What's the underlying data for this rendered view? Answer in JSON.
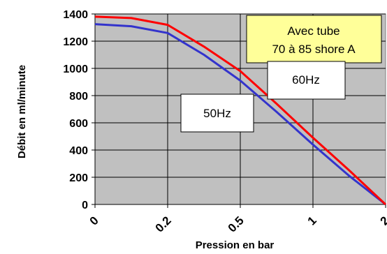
{
  "chart_data": {
    "type": "line",
    "xlabel": "Pression en bar",
    "ylabel": "Débit en ml/minute",
    "x_ticks": [
      "0",
      "0.2",
      "0.5",
      "1",
      "2"
    ],
    "y_ticks": [
      0,
      200,
      400,
      600,
      800,
      1000,
      1200,
      1400
    ],
    "ylim": [
      0,
      1400
    ],
    "grid": true,
    "series": [
      {
        "name": "60Hz",
        "color": "#ff0000",
        "x": [
          0,
          0.5,
          1,
          1.5,
          2,
          2.5,
          3,
          3.5,
          4
        ],
        "values": [
          1380,
          1370,
          1320,
          1160,
          980,
          740,
          490,
          250,
          0
        ]
      },
      {
        "name": "50Hz",
        "color": "#3333cc",
        "x": [
          0,
          0.5,
          1,
          1.5,
          2,
          2.5,
          3,
          3.5,
          4
        ],
        "values": [
          1325,
          1310,
          1260,
          1100,
          910,
          680,
          440,
          210,
          0
        ]
      }
    ],
    "annotations": {
      "tube": [
        "Avec tube",
        "70 à 85 shore A"
      ],
      "label_60": "60Hz",
      "label_50": "50Hz"
    },
    "colors": {
      "plot_bg": "#c0c0c0",
      "annotation_bg": "#ffff99",
      "gridline": "#000000"
    }
  }
}
